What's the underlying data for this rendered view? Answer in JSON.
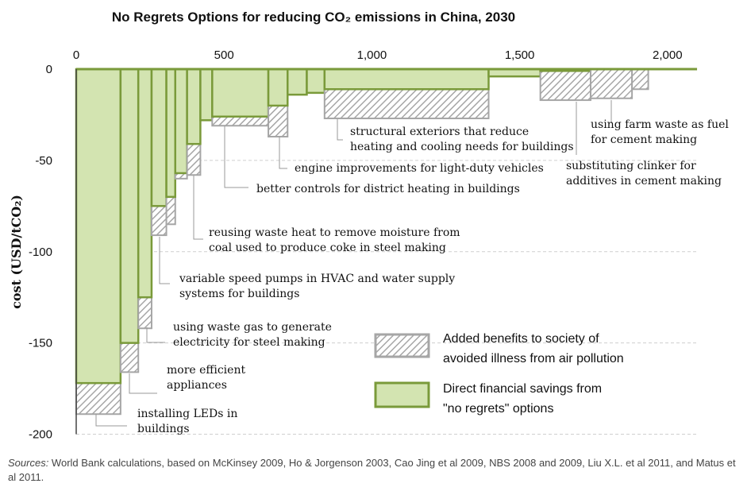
{
  "chart_data": {
    "type": "bar",
    "title": "No Regrets Options for reducing CO₂ emissions in China, 2030",
    "ylabel": "cost (USD/tCO₂)",
    "xlim": [
      0,
      2100
    ],
    "ylim": [
      -200,
      0
    ],
    "x_ticks": [
      "0",
      "500",
      "1,000",
      "1,500",
      "2,000"
    ],
    "y_ticks": [
      "0",
      "-50",
      "-100",
      "-150",
      "-200"
    ],
    "grid": true,
    "legend_position": "bottom-right",
    "series": [
      {
        "name": "Direct financial savings from \"no regrets\" options",
        "color": "#d3e4b1",
        "stroke": "#7a9a3a"
      },
      {
        "name": "Added benefits to society of avoided illness from air pollution",
        "color": "#bdbdbd"
      }
    ],
    "bars": [
      {
        "x0": 0,
        "x1": 150,
        "direct": -172,
        "total": -189
      },
      {
        "x0": 150,
        "x1": 210,
        "direct": -150,
        "total": -166
      },
      {
        "x0": 210,
        "x1": 255,
        "direct": -125,
        "total": -142
      },
      {
        "x0": 255,
        "x1": 305,
        "direct": -75,
        "total": -91
      },
      {
        "x0": 305,
        "x1": 335,
        "direct": -70,
        "total": -85
      },
      {
        "x0": 335,
        "x1": 375,
        "direct": -57,
        "total": -60
      },
      {
        "x0": 375,
        "x1": 420,
        "direct": -41,
        "total": -58
      },
      {
        "x0": 420,
        "x1": 460,
        "direct": -28,
        "total": -28
      },
      {
        "x0": 460,
        "x1": 650,
        "direct": -26,
        "total": -31
      },
      {
        "x0": 650,
        "x1": 715,
        "direct": -20,
        "total": -37
      },
      {
        "x0": 715,
        "x1": 780,
        "direct": -14,
        "total": -14
      },
      {
        "x0": 780,
        "x1": 840,
        "direct": -13,
        "total": -13
      },
      {
        "x0": 840,
        "x1": 1395,
        "direct": -11,
        "total": -27
      },
      {
        "x0": 1395,
        "x1": 1570,
        "direct": -4,
        "total": -4
      },
      {
        "x0": 1570,
        "x1": 1740,
        "direct": -1,
        "total": -17
      },
      {
        "x0": 1740,
        "x1": 1880,
        "direct": 0,
        "total": -16
      },
      {
        "x0": 1880,
        "x1": 1935,
        "direct": 0,
        "total": -11
      },
      {
        "x0": 1935,
        "x1": 2100,
        "direct": 0,
        "total": 0
      }
    ],
    "annotations": [
      {
        "lines": [
          "installing LEDs in",
          "buildings"
        ],
        "bar": 0
      },
      {
        "lines": [
          "more efficient",
          "appliances"
        ],
        "bar": 1
      },
      {
        "lines": [
          "using waste gas to generate",
          "electricity for steel making"
        ],
        "bar": 2
      },
      {
        "lines": [
          "variable speed pumps in HVAC and water supply",
          "systems for buildings"
        ],
        "bar": 3
      },
      {
        "lines": [
          "reusing waste heat to remove moisture from",
          "coal used to produce coke in steel making"
        ],
        "bar": 6
      },
      {
        "lines": [
          "better controls for district heating in buildings"
        ],
        "bar": 8
      },
      {
        "lines": [
          "engine improvements for light-duty vehicles"
        ],
        "bar": 9
      },
      {
        "lines": [
          "structural exteriors that reduce",
          "heating and cooling needs for buildings"
        ],
        "bar": 12
      },
      {
        "lines": [
          "using farm waste as fuel",
          "for cement making"
        ],
        "bar": 15
      },
      {
        "lines": [
          "substituting clinker for",
          "additives in cement making"
        ],
        "bar": 14
      }
    ]
  },
  "sources": {
    "label": "Sources:",
    "text": " World Bank calculations, based on McKinsey 2009, Ho & Jorgenson 2003, Cao Jing et al 2009, NBS 2008 and 2009, Liu X.L. et al 2011, and Matus et al 2011."
  }
}
